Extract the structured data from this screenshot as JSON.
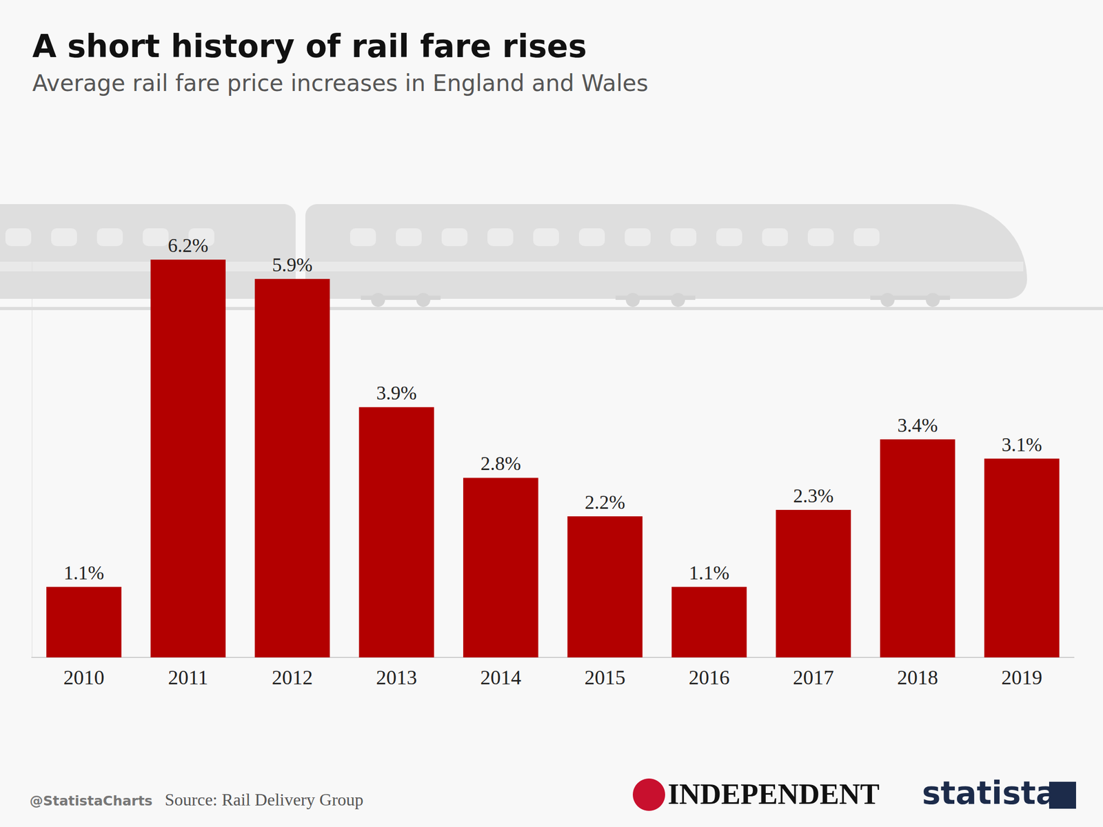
{
  "chart_data": {
    "type": "bar",
    "title": "A short history of rail fare rises",
    "subtitle": "Average rail fare price increases in England and Wales",
    "categories": [
      "2010",
      "2011",
      "2012",
      "2013",
      "2014",
      "2015",
      "2016",
      "2017",
      "2018",
      "2019"
    ],
    "values": [
      1.1,
      6.2,
      5.9,
      3.9,
      2.8,
      2.2,
      1.1,
      2.3,
      3.4,
      3.1
    ],
    "value_labels": [
      "1.1%",
      "6.2%",
      "5.9%",
      "3.9%",
      "2.8%",
      "2.2%",
      "1.1%",
      "2.3%",
      "3.4%",
      "3.1%"
    ],
    "color": "#b30000",
    "ylim": [
      0,
      7
    ],
    "grid": false,
    "data_labels": true,
    "tick_labels": "x",
    "credit": "@StatistaCharts",
    "source": "Source: Rail Delivery Group",
    "logos": [
      "INDEPENDENT",
      "statista"
    ]
  }
}
